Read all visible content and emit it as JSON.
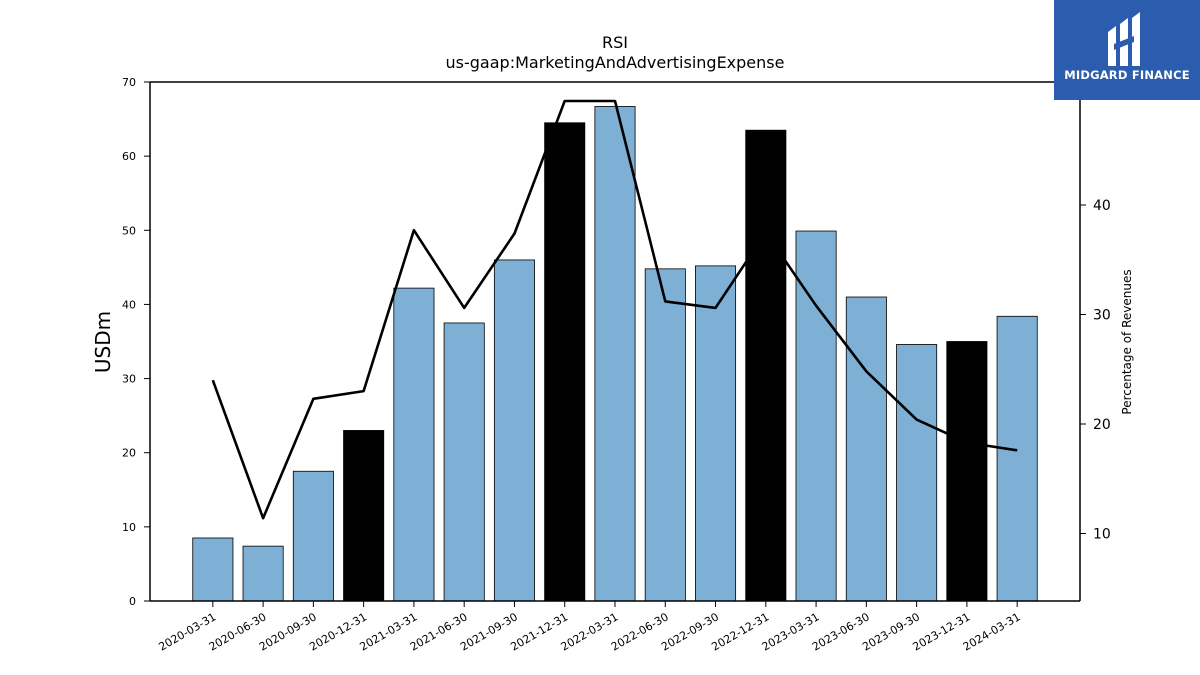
{
  "chart_data": {
    "type": "bar",
    "title": "RSI",
    "subtitle": "us-gaap:MarketingAndAdvertisingExpense",
    "ylabel": "USDm",
    "y2label": "Percentage of Revenues",
    "categories": [
      "2020-03-31",
      "2020-06-30",
      "2020-09-30",
      "2020-12-31",
      "2021-03-31",
      "2021-06-30",
      "2021-09-30",
      "2021-12-31",
      "2022-03-31",
      "2022-06-30",
      "2022-09-30",
      "2022-12-31",
      "2023-03-31",
      "2023-06-30",
      "2023-09-30",
      "2023-12-31",
      "2024-03-31"
    ],
    "values": [
      8.5,
      7.4,
      17.5,
      23.0,
      42.2,
      37.5,
      46.0,
      64.5,
      66.7,
      44.8,
      45.2,
      63.5,
      49.9,
      41.0,
      34.6,
      35.0,
      38.4
    ],
    "bar_highlight": [
      false,
      false,
      false,
      true,
      false,
      false,
      false,
      true,
      false,
      false,
      false,
      true,
      false,
      false,
      false,
      true,
      false
    ],
    "line_values": [
      24.0,
      11.4,
      22.3,
      23.0,
      37.7,
      30.6,
      37.4,
      49.5,
      49.5,
      31.2,
      30.6,
      37.5,
      30.8,
      24.8,
      20.4,
      18.3,
      17.6
    ],
    "ylim": [
      0,
      70
    ],
    "y_ticks": [
      0,
      10,
      20,
      30,
      40,
      50,
      60,
      70
    ],
    "y2_ticks": [
      10,
      20,
      30,
      40
    ],
    "colors": {
      "bar": "#7eb0d5",
      "bar_highlight": "#000000",
      "line": "#000000"
    }
  },
  "logo": {
    "text": "MIDGARD FINANCE",
    "color": "#2b5cad"
  }
}
